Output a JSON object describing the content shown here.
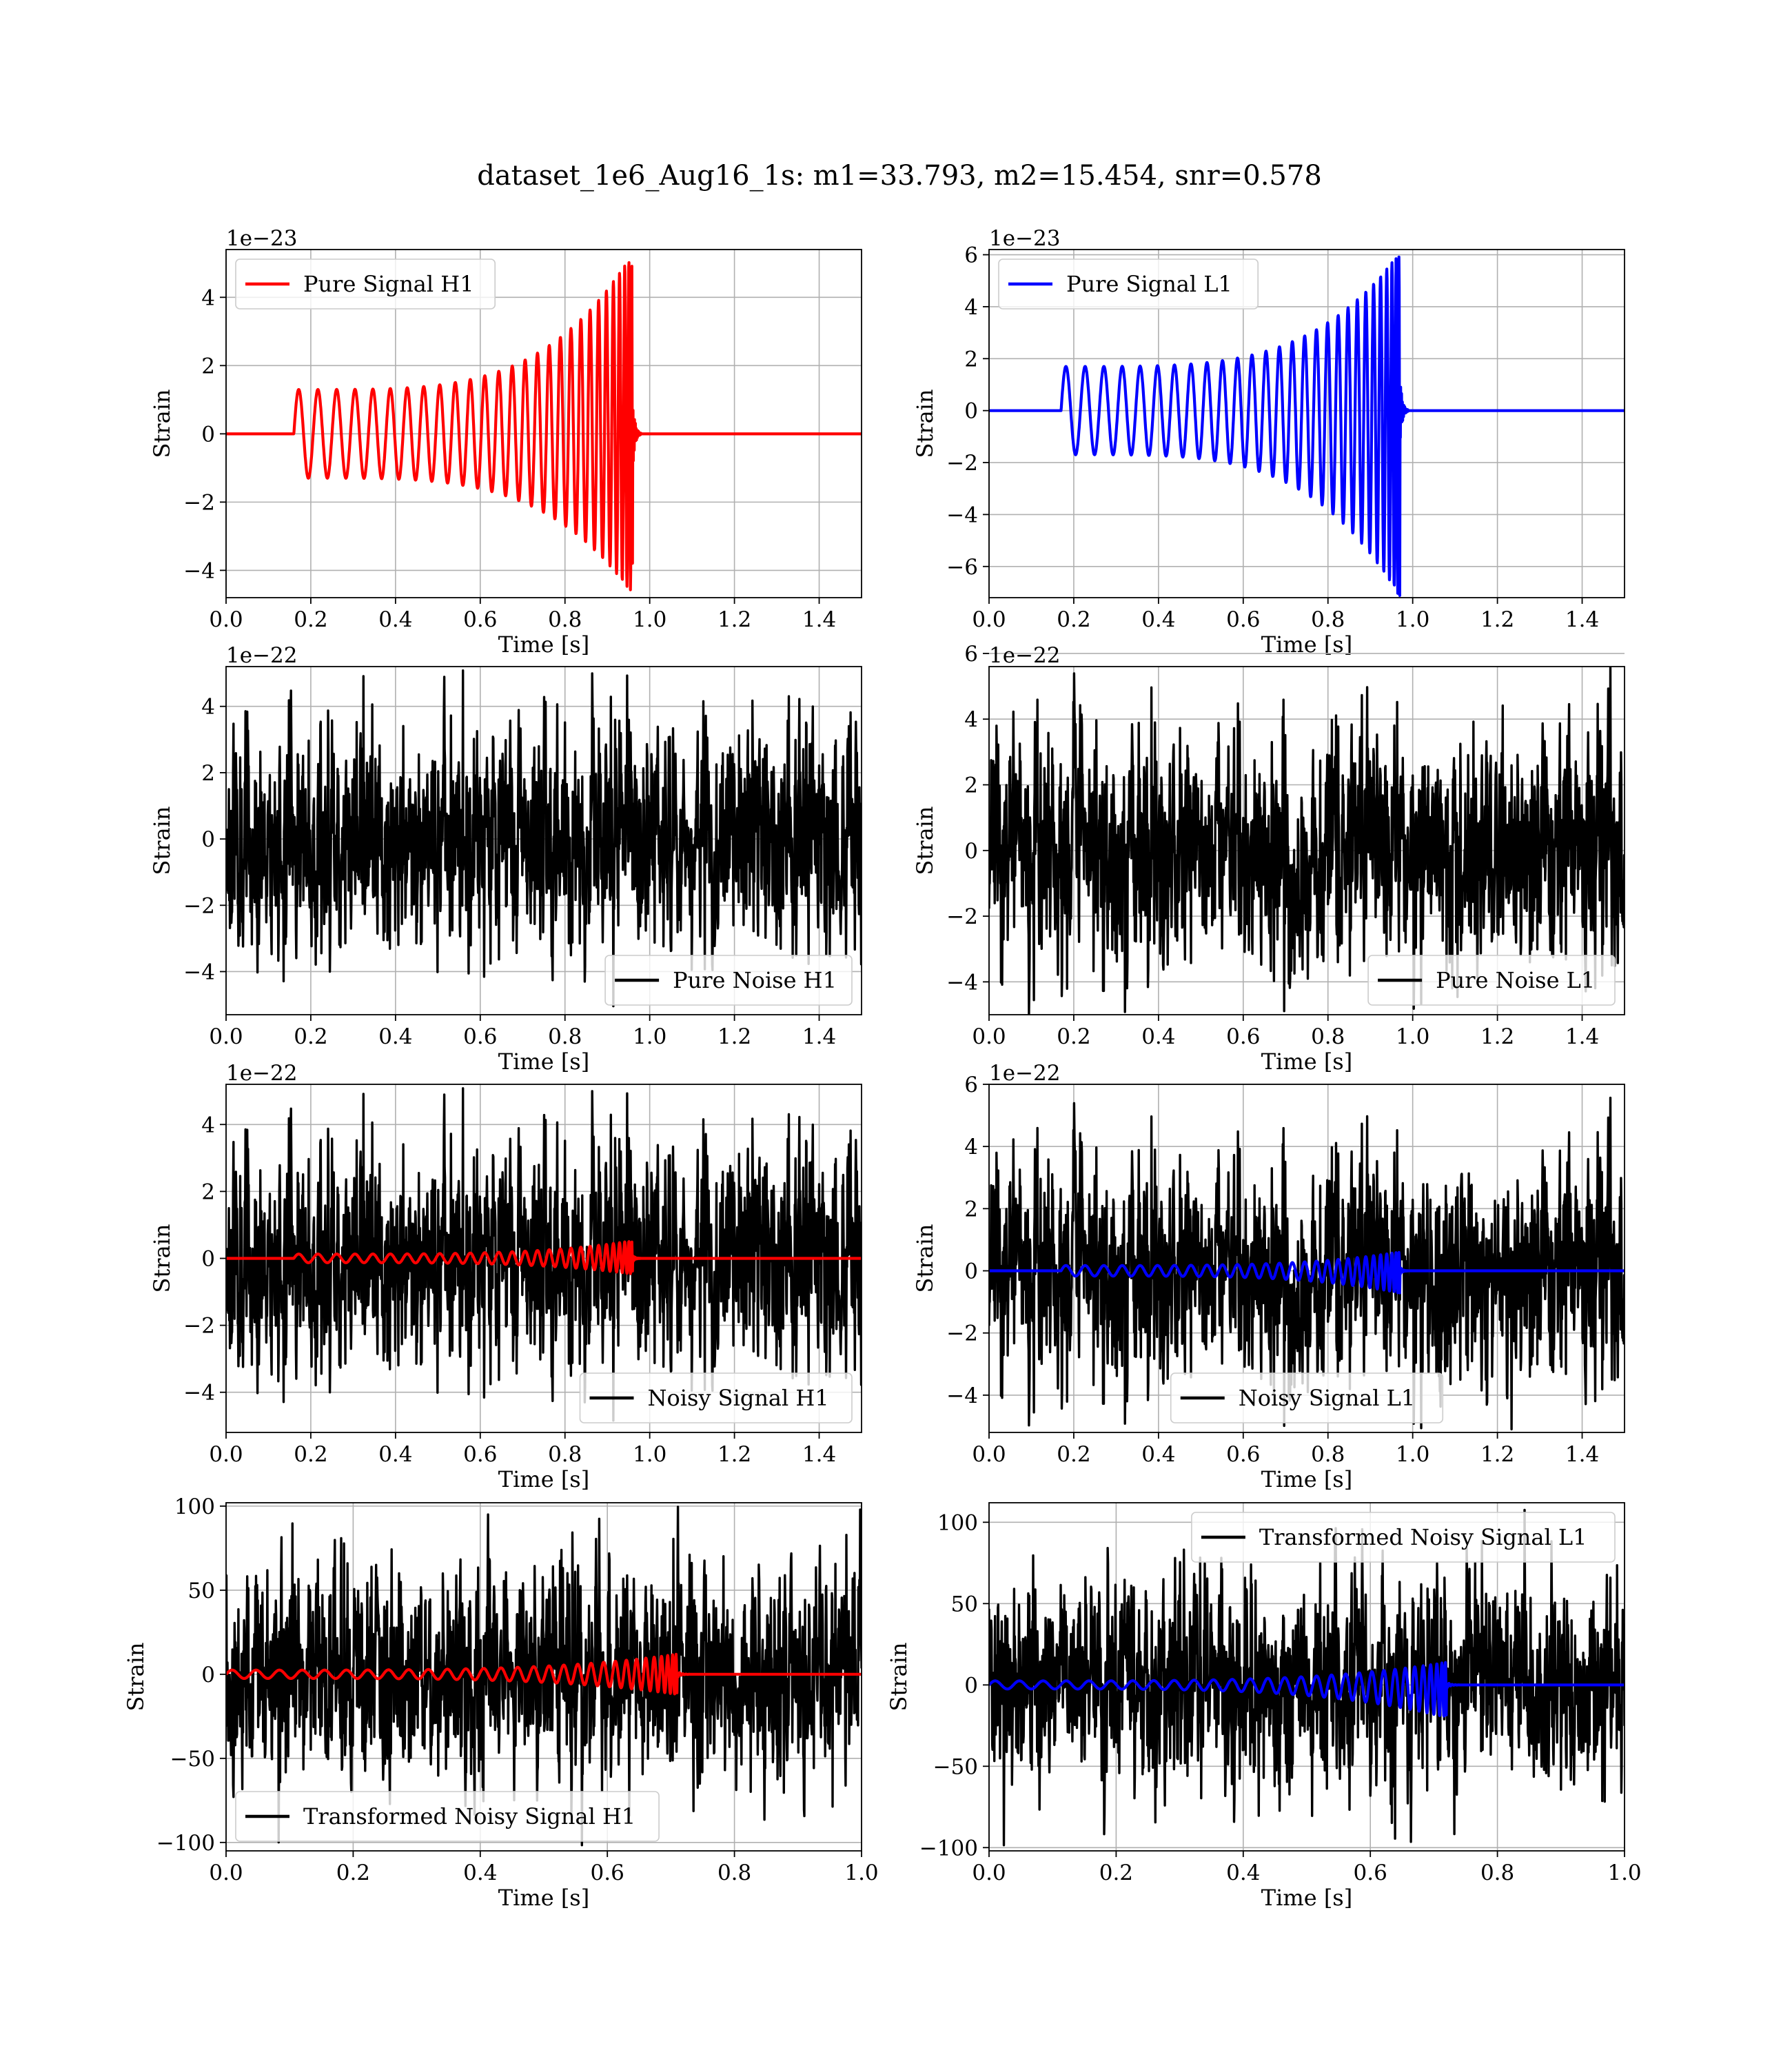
{
  "title": "dataset_1e6_Aug16_1s: m1=33.793, m2=15.454, snr=0.578",
  "colors": {
    "h1_signal": "#ff0000",
    "l1_signal": "#0000ff",
    "noise": "#000000"
  },
  "chart_data": [
    {
      "type": "line",
      "id": "pure-signal-h1",
      "xlabel": "Time [s]",
      "ylabel": "Strain",
      "offset_text": "1e−23",
      "xlim": [
        0,
        1.5
      ],
      "ylim": [
        -4.8,
        5.4
      ],
      "xticks": [
        0.0,
        0.2,
        0.4,
        0.6,
        0.8,
        1.0,
        1.2,
        1.4
      ],
      "xtick_labels": [
        "0.0",
        "0.2",
        "0.4",
        "0.6",
        "0.8",
        "1.0",
        "1.2",
        "1.4"
      ],
      "yticks": [
        -4,
        -2,
        0,
        2,
        4
      ],
      "ytick_labels": [
        "−4",
        "−2",
        "0",
        "2",
        "4"
      ],
      "grid": true,
      "legend_loc": "upper left",
      "series": [
        {
          "name": "Pure Signal H1",
          "kind": "chirp",
          "color": "#ff0000",
          "t_start": 0.16,
          "t_merge": 0.96,
          "base_amp": 1.3,
          "peak_amp": 5.3,
          "trough_amp": -4.7,
          "n_cycles": 28
        }
      ]
    },
    {
      "type": "line",
      "id": "pure-signal-l1",
      "xlabel": "Time [s]",
      "ylabel": "Strain",
      "offset_text": "1e−23",
      "xlim": [
        0,
        1.5
      ],
      "ylim": [
        -7.2,
        6.2
      ],
      "xticks": [
        0.0,
        0.2,
        0.4,
        0.6,
        0.8,
        1.0,
        1.2,
        1.4
      ],
      "xtick_labels": [
        "0.0",
        "0.2",
        "0.4",
        "0.6",
        "0.8",
        "1.0",
        "1.2",
        "1.4"
      ],
      "yticks": [
        -6,
        -4,
        -2,
        0,
        2,
        4,
        6
      ],
      "ytick_labels": [
        "−6",
        "−4",
        "−2",
        "0",
        "2",
        "4",
        "6"
      ],
      "grid": true,
      "legend_loc": "upper left",
      "series": [
        {
          "name": "Pure Signal L1",
          "kind": "chirp",
          "color": "#0000ff",
          "t_start": 0.17,
          "t_merge": 0.97,
          "base_amp": 1.7,
          "peak_amp": 6.1,
          "trough_amp": -7.2,
          "n_cycles": 28
        }
      ]
    },
    {
      "type": "line",
      "id": "pure-noise-h1",
      "xlabel": "Time [s]",
      "ylabel": "Strain",
      "offset_text": "1e−22",
      "xlim": [
        0,
        1.5
      ],
      "ylim": [
        -5.3,
        5.2
      ],
      "xticks": [
        0.0,
        0.2,
        0.4,
        0.6,
        0.8,
        1.0,
        1.2,
        1.4
      ],
      "xtick_labels": [
        "0.0",
        "0.2",
        "0.4",
        "0.6",
        "0.8",
        "1.0",
        "1.2",
        "1.4"
      ],
      "yticks": [
        -4,
        -2,
        0,
        2,
        4
      ],
      "ytick_labels": [
        "−4",
        "−2",
        "0",
        "2",
        "4"
      ],
      "grid": true,
      "legend_loc": "lower right",
      "series": [
        {
          "name": "Pure Noise H1",
          "kind": "noise",
          "color": "#000000",
          "sigma": 1.6,
          "max": 5.2,
          "min": -5.3,
          "seed": 11
        }
      ]
    },
    {
      "type": "line",
      "id": "pure-noise-l1",
      "xlabel": "Time [s]",
      "ylabel": "Strain",
      "offset_text": "1e−22",
      "xlim": [
        0,
        1.5
      ],
      "ylim": [
        -5.0,
        5.6
      ],
      "xticks": [
        0.0,
        0.2,
        0.4,
        0.6,
        0.8,
        1.0,
        1.2,
        1.4
      ],
      "xtick_labels": [
        "0.0",
        "0.2",
        "0.4",
        "0.6",
        "0.8",
        "1.0",
        "1.2",
        "1.4"
      ],
      "yticks": [
        -4,
        -2,
        0,
        2,
        4,
        6
      ],
      "ytick_labels": [
        "−4",
        "−2",
        "0",
        "2",
        "4",
        "6"
      ],
      "grid": true,
      "legend_loc": "lower right",
      "series": [
        {
          "name": "Pure Noise L1",
          "kind": "noise",
          "color": "#000000",
          "sigma": 1.7,
          "max": 5.6,
          "min": -5.0,
          "seed": 23
        }
      ]
    },
    {
      "type": "line",
      "id": "noisy-signal-h1",
      "xlabel": "Time [s]",
      "ylabel": "Strain",
      "offset_text": "1e−22",
      "xlim": [
        0,
        1.5
      ],
      "ylim": [
        -5.2,
        5.2
      ],
      "xticks": [
        0.0,
        0.2,
        0.4,
        0.6,
        0.8,
        1.0,
        1.2,
        1.4
      ],
      "xtick_labels": [
        "0.0",
        "0.2",
        "0.4",
        "0.6",
        "0.8",
        "1.0",
        "1.2",
        "1.4"
      ],
      "yticks": [
        -4,
        -2,
        0,
        2,
        4
      ],
      "ytick_labels": [
        "−4",
        "−2",
        "0",
        "2",
        "4"
      ],
      "grid": true,
      "legend_loc": "lower right",
      "series": [
        {
          "name": "Noisy Signal H1",
          "kind": "noise",
          "color": "#000000",
          "sigma": 1.6,
          "max": 5.2,
          "min": -5.1,
          "seed": 11
        },
        {
          "kind": "chirp",
          "color": "#ff0000",
          "t_start": 0.16,
          "t_merge": 0.96,
          "base_amp": 0.13,
          "peak_amp": 0.53,
          "trough_amp": -0.47,
          "n_cycles": 28
        }
      ]
    },
    {
      "type": "line",
      "id": "noisy-signal-l1",
      "xlabel": "Time [s]",
      "ylabel": "Strain",
      "offset_text": "1e−22",
      "xlim": [
        0,
        1.5
      ],
      "ylim": [
        -5.2,
        6.0
      ],
      "xticks": [
        0.0,
        0.2,
        0.4,
        0.6,
        0.8,
        1.0,
        1.2,
        1.4
      ],
      "xtick_labels": [
        "0.0",
        "0.2",
        "0.4",
        "0.6",
        "0.8",
        "1.0",
        "1.2",
        "1.4"
      ],
      "yticks": [
        -4,
        -2,
        0,
        2,
        4,
        6
      ],
      "ytick_labels": [
        "−4",
        "−2",
        "0",
        "2",
        "4",
        "6"
      ],
      "grid": true,
      "legend_loc": "lower center",
      "series": [
        {
          "name": "Noisy Signal L1",
          "kind": "noise",
          "color": "#000000",
          "sigma": 1.7,
          "max": 5.6,
          "min": -5.1,
          "seed": 23
        },
        {
          "kind": "chirp",
          "color": "#0000ff",
          "t_start": 0.17,
          "t_merge": 0.97,
          "base_amp": 0.17,
          "peak_amp": 0.61,
          "trough_amp": -0.72,
          "n_cycles": 28
        }
      ]
    },
    {
      "type": "line",
      "id": "transformed-noisy-signal-h1",
      "xlabel": "Time [s]",
      "ylabel": "Strain",
      "offset_text": "",
      "xlim": [
        0,
        1.0
      ],
      "ylim": [
        -105,
        102
      ],
      "xticks": [
        0.0,
        0.2,
        0.4,
        0.6,
        0.8,
        1.0
      ],
      "xtick_labels": [
        "0.0",
        "0.2",
        "0.4",
        "0.6",
        "0.8",
        "1.0"
      ],
      "yticks": [
        -100,
        -50,
        0,
        50,
        100
      ],
      "ytick_labels": [
        "−100",
        "−50",
        "0",
        "50",
        "100"
      ],
      "grid": true,
      "legend_loc": "lower left",
      "series": [
        {
          "name": "Transformed Noisy Signal H1",
          "kind": "noise",
          "color": "#000000",
          "sigma": 30,
          "max": 100,
          "min": -105,
          "seed": 37
        },
        {
          "kind": "chirp",
          "color": "#ff0000",
          "t_start": 0.0,
          "t_merge": 0.71,
          "base_amp": 2.5,
          "peak_amp": 12,
          "trough_amp": -12,
          "n_cycles": 30
        }
      ]
    },
    {
      "type": "line",
      "id": "transformed-noisy-signal-l1",
      "xlabel": "Time [s]",
      "ylabel": "Strain",
      "offset_text": "",
      "xlim": [
        0,
        1.0
      ],
      "ylim": [
        -102,
        112
      ],
      "xticks": [
        0.0,
        0.2,
        0.4,
        0.6,
        0.8,
        1.0
      ],
      "xtick_labels": [
        "0.0",
        "0.2",
        "0.4",
        "0.6",
        "0.8",
        "1.0"
      ],
      "yticks": [
        -100,
        -50,
        0,
        50,
        100
      ],
      "ytick_labels": [
        "−100",
        "−50",
        "0",
        "50",
        "100"
      ],
      "grid": true,
      "legend_loc": "upper right",
      "series": [
        {
          "name": "Transformed Noisy Signal L1",
          "kind": "noise",
          "color": "#000000",
          "sigma": 30,
          "max": 108,
          "min": -100,
          "seed": 41
        },
        {
          "kind": "chirp",
          "color": "#0000ff",
          "t_start": 0.0,
          "t_merge": 0.72,
          "base_amp": 2.5,
          "peak_amp": 14,
          "trough_amp": -20,
          "n_cycles": 30
        }
      ]
    }
  ]
}
